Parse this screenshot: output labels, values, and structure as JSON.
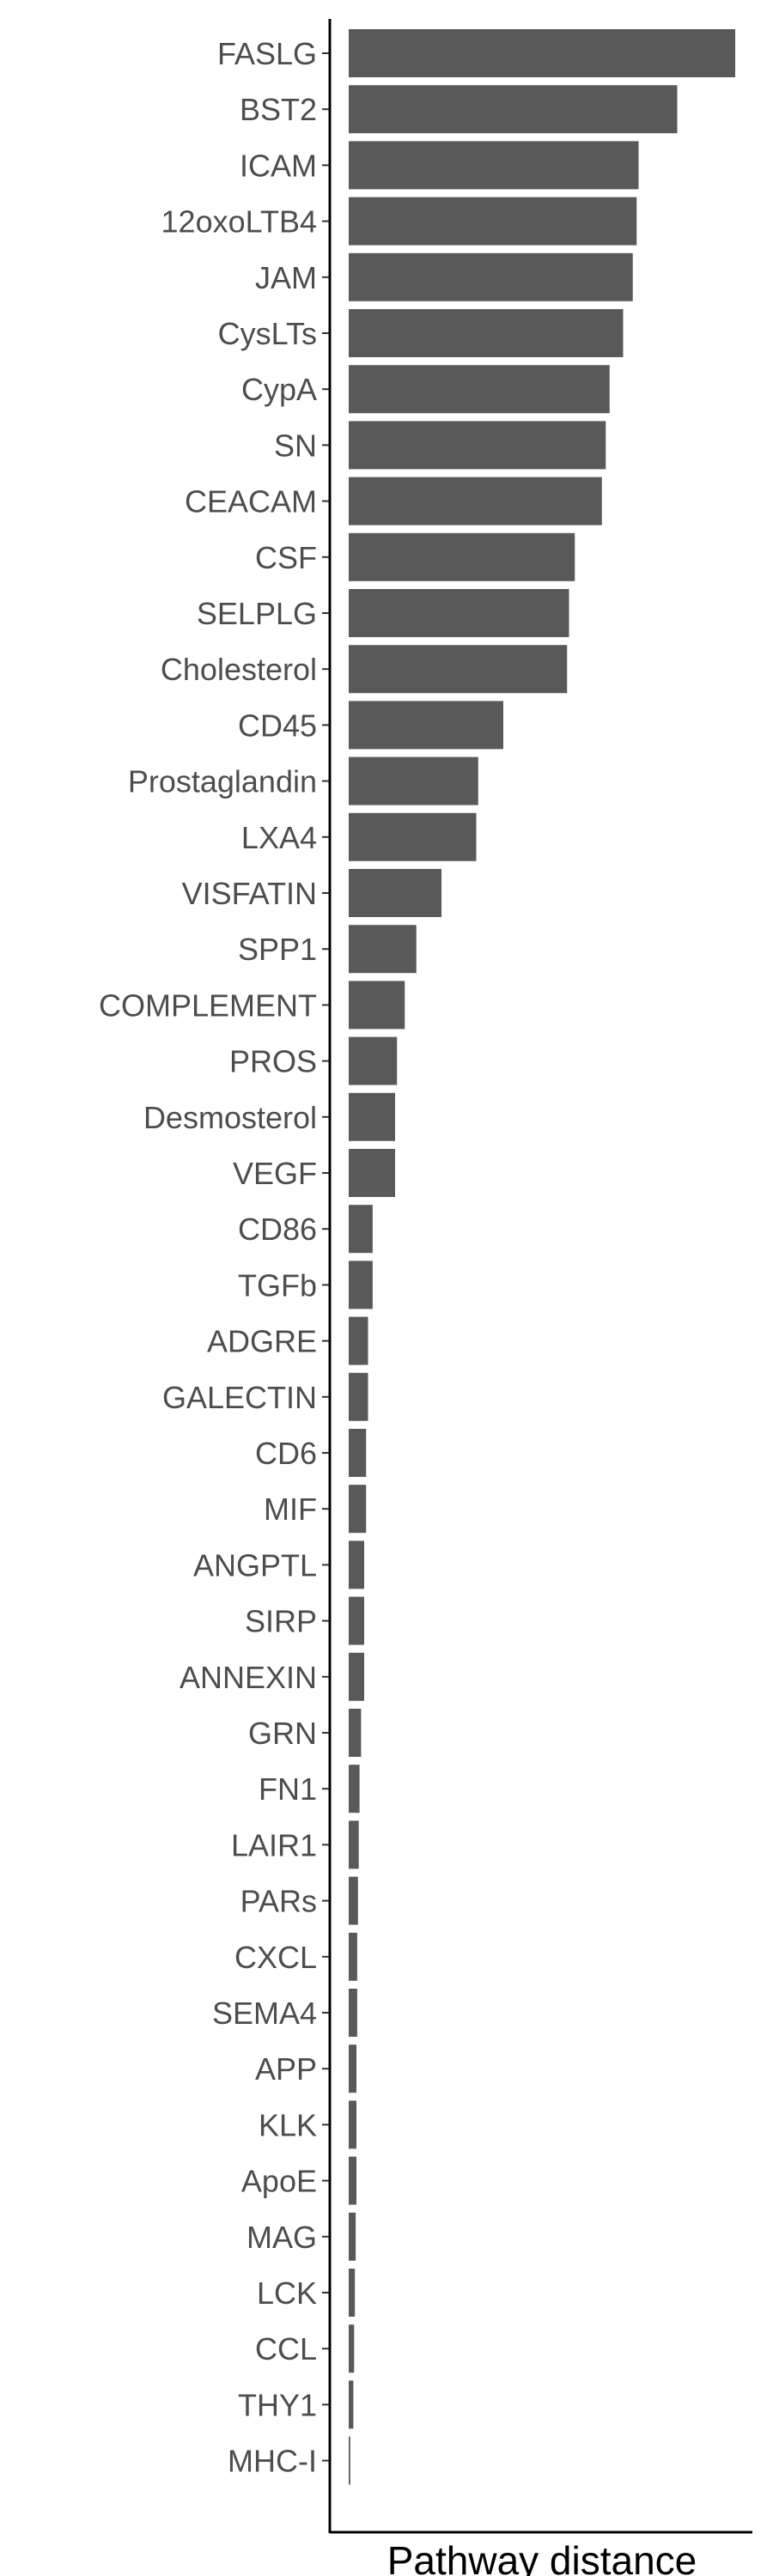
{
  "chart_data": {
    "type": "bar",
    "orientation": "horizontal",
    "xlabel": "Pathway distance",
    "ylabel": "",
    "grid": false,
    "x_tick_labels_shown": false,
    "categories": [
      "FASLG",
      "BST2",
      "ICAM",
      "12oxoLTB4",
      "JAM",
      "CysLTs",
      "CypA",
      "SN",
      "CEACAM",
      "CSF",
      "SELPLG",
      "Cholesterol",
      "CD45",
      "Prostaglandin",
      "LXA4",
      "VISFATIN",
      "SPP1",
      "COMPLEMENT",
      "PROS",
      "Desmosterol",
      "VEGF",
      "CD86",
      "TGFb",
      "ADGRE",
      "GALECTIN",
      "CD6",
      "MIF",
      "ANGPTL",
      "SIRP",
      "ANNEXIN",
      "GRN",
      "FN1",
      "LAIR1",
      "PARs",
      "CXCL",
      "SEMA4",
      "APP",
      "KLK",
      "ApoE",
      "MAG",
      "LCK",
      "CCL",
      "THY1",
      "MHC-I"
    ],
    "values": [
      1.0,
      0.85,
      0.75,
      0.745,
      0.735,
      0.71,
      0.675,
      0.665,
      0.655,
      0.585,
      0.57,
      0.565,
      0.4,
      0.335,
      0.33,
      0.24,
      0.175,
      0.145,
      0.125,
      0.12,
      0.12,
      0.062,
      0.062,
      0.05,
      0.05,
      0.045,
      0.045,
      0.04,
      0.04,
      0.04,
      0.032,
      0.028,
      0.026,
      0.024,
      0.022,
      0.022,
      0.02,
      0.02,
      0.02,
      0.018,
      0.016,
      0.014,
      0.012,
      0.004
    ],
    "colors": {
      "bar": "#595959",
      "axis": "#000000",
      "tick_label": "#4d4d4d"
    }
  }
}
